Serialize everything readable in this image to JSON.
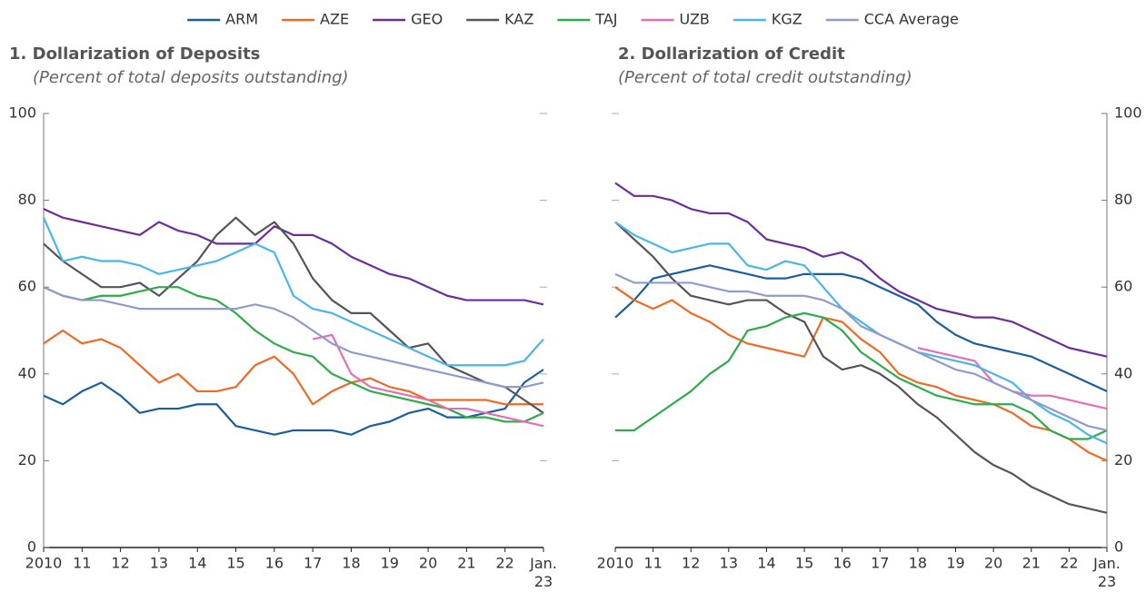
{
  "chart_data": [
    {
      "type": "line",
      "title": "1. Dollarization of Deposits",
      "subtitle": "(Percent of total deposits outstanding)",
      "yaxis_side": "left",
      "x": [
        2010,
        2010.5,
        2011,
        2011.5,
        2012,
        2012.5,
        2013,
        2013.5,
        2014,
        2014.5,
        2015,
        2015.5,
        2016,
        2016.5,
        2017,
        2017.5,
        2018,
        2018.5,
        2019,
        2019.5,
        2020,
        2020.5,
        2021,
        2021.5,
        2022,
        2022.5,
        2023
      ],
      "xlim": [
        2010,
        2023
      ],
      "xticks": [
        {
          "value": 2010,
          "label": "2010"
        },
        {
          "value": 2011,
          "label": "11"
        },
        {
          "value": 2012,
          "label": "12"
        },
        {
          "value": 2013,
          "label": "13"
        },
        {
          "value": 2014,
          "label": "14"
        },
        {
          "value": 2015,
          "label": "15"
        },
        {
          "value": 2016,
          "label": "16"
        },
        {
          "value": 2017,
          "label": "17"
        },
        {
          "value": 2018,
          "label": "18"
        },
        {
          "value": 2019,
          "label": "19"
        },
        {
          "value": 2020,
          "label": "20"
        },
        {
          "value": 2021,
          "label": "21"
        },
        {
          "value": 2022,
          "label": "22"
        },
        {
          "value": 2023,
          "label": "Jan. 23"
        }
      ],
      "ylim": [
        0,
        100
      ],
      "yticks": [
        0,
        20,
        40,
        60,
        80,
        100
      ],
      "series": [
        {
          "name": "ARM",
          "color": "#1b5e9e",
          "values": [
            35,
            33,
            36,
            38,
            35,
            31,
            32,
            32,
            33,
            33,
            28,
            27,
            26,
            27,
            27,
            27,
            26,
            28,
            29,
            31,
            32,
            30,
            30,
            31,
            32,
            38,
            41
          ]
        },
        {
          "name": "AZE",
          "color": "#ee6a24",
          "values": [
            47,
            50,
            47,
            48,
            46,
            42,
            38,
            40,
            36,
            36,
            37,
            42,
            44,
            40,
            33,
            36,
            38,
            39,
            37,
            36,
            34,
            34,
            34,
            34,
            33,
            33,
            33
          ]
        },
        {
          "name": "GEO",
          "color": "#6b2d9b",
          "values": [
            78,
            76,
            75,
            74,
            73,
            72,
            75,
            73,
            72,
            70,
            70,
            70,
            74,
            72,
            72,
            70,
            67,
            65,
            63,
            62,
            60,
            58,
            57,
            57,
            57,
            57,
            56
          ]
        },
        {
          "name": "KAZ",
          "color": "#555555",
          "values": [
            70,
            66,
            63,
            60,
            60,
            61,
            58,
            62,
            66,
            72,
            76,
            72,
            75,
            70,
            62,
            57,
            54,
            54,
            50,
            46,
            47,
            42,
            40,
            38,
            37,
            34,
            31
          ]
        },
        {
          "name": "TAJ",
          "color": "#2eab4a",
          "values": [
            60,
            58,
            57,
            58,
            58,
            59,
            60,
            60,
            58,
            57,
            54,
            50,
            47,
            45,
            44,
            40,
            38,
            36,
            35,
            34,
            33,
            32,
            30,
            30,
            29,
            29,
            31
          ]
        },
        {
          "name": "UZB",
          "color": "#e46fb4",
          "values": [
            null,
            null,
            null,
            null,
            null,
            null,
            null,
            null,
            null,
            null,
            null,
            null,
            null,
            null,
            48,
            49,
            40,
            37,
            36,
            35,
            34,
            32,
            32,
            31,
            30,
            29,
            28
          ]
        },
        {
          "name": "KGZ",
          "color": "#4ab5e8",
          "values": [
            76,
            66,
            67,
            66,
            66,
            65,
            63,
            64,
            65,
            66,
            68,
            70,
            68,
            58,
            55,
            54,
            52,
            50,
            48,
            46,
            44,
            42,
            42,
            42,
            42,
            43,
            48
          ]
        },
        {
          "name": "CCA Average",
          "color": "#8f9bcb",
          "values": [
            60,
            58,
            57,
            57,
            56,
            55,
            55,
            55,
            55,
            55,
            55,
            56,
            55,
            53,
            50,
            47,
            45,
            44,
            43,
            42,
            41,
            40,
            39,
            38,
            37,
            37,
            38
          ]
        }
      ]
    },
    {
      "type": "line",
      "title": "2. Dollarization of Credit",
      "subtitle": "(Percent of total credit outstanding)",
      "yaxis_side": "right",
      "x": [
        2010,
        2010.5,
        2011,
        2011.5,
        2012,
        2012.5,
        2013,
        2013.5,
        2014,
        2014.5,
        2015,
        2015.5,
        2016,
        2016.5,
        2017,
        2017.5,
        2018,
        2018.5,
        2019,
        2019.5,
        2020,
        2020.5,
        2021,
        2021.5,
        2022,
        2022.5,
        2023
      ],
      "xlim": [
        2010,
        2023
      ],
      "xticks": [
        {
          "value": 2010,
          "label": "2010"
        },
        {
          "value": 2011,
          "label": "11"
        },
        {
          "value": 2012,
          "label": "12"
        },
        {
          "value": 2013,
          "label": "13"
        },
        {
          "value": 2014,
          "label": "14"
        },
        {
          "value": 2015,
          "label": "15"
        },
        {
          "value": 2016,
          "label": "16"
        },
        {
          "value": 2017,
          "label": "17"
        },
        {
          "value": 2018,
          "label": "18"
        },
        {
          "value": 2019,
          "label": "19"
        },
        {
          "value": 2020,
          "label": "20"
        },
        {
          "value": 2021,
          "label": "21"
        },
        {
          "value": 2022,
          "label": "22"
        },
        {
          "value": 2023,
          "label": "Jan. 23"
        }
      ],
      "ylim": [
        0,
        100
      ],
      "yticks": [
        0,
        20,
        40,
        60,
        80,
        100
      ],
      "series": [
        {
          "name": "ARM",
          "color": "#1b5e9e",
          "values": [
            53,
            57,
            62,
            63,
            64,
            65,
            64,
            63,
            62,
            62,
            63,
            63,
            63,
            62,
            60,
            58,
            56,
            52,
            49,
            47,
            46,
            45,
            44,
            42,
            40,
            38,
            36
          ]
        },
        {
          "name": "AZE",
          "color": "#ee6a24",
          "values": [
            60,
            57,
            55,
            57,
            54,
            52,
            49,
            47,
            46,
            45,
            44,
            53,
            52,
            48,
            45,
            40,
            38,
            37,
            35,
            34,
            33,
            31,
            28,
            27,
            25,
            22,
            20
          ]
        },
        {
          "name": "GEO",
          "color": "#6b2d9b",
          "values": [
            84,
            81,
            81,
            80,
            78,
            77,
            77,
            75,
            71,
            70,
            69,
            67,
            68,
            66,
            62,
            59,
            57,
            55,
            54,
            53,
            53,
            52,
            50,
            48,
            46,
            45,
            44
          ]
        },
        {
          "name": "KAZ",
          "color": "#555555",
          "values": [
            75,
            71,
            67,
            62,
            58,
            57,
            56,
            57,
            57,
            54,
            52,
            44,
            41,
            42,
            40,
            37,
            33,
            30,
            26,
            22,
            19,
            17,
            14,
            12,
            10,
            9,
            8
          ]
        },
        {
          "name": "TAJ",
          "color": "#2eab4a",
          "values": [
            27,
            27,
            30,
            33,
            36,
            40,
            43,
            50,
            51,
            53,
            54,
            53,
            50,
            45,
            42,
            39,
            37,
            35,
            34,
            33,
            33,
            33,
            31,
            27,
            25,
            25,
            27
          ]
        },
        {
          "name": "UZB",
          "color": "#e46fb4",
          "values": [
            null,
            null,
            null,
            null,
            null,
            null,
            null,
            null,
            null,
            null,
            null,
            null,
            null,
            null,
            null,
            null,
            46,
            45,
            44,
            43,
            38,
            36,
            35,
            35,
            34,
            33,
            32
          ]
        },
        {
          "name": "KGZ",
          "color": "#4ab5e8",
          "values": [
            75,
            72,
            70,
            68,
            69,
            70,
            70,
            65,
            64,
            66,
            65,
            60,
            55,
            52,
            49,
            47,
            45,
            44,
            43,
            42,
            40,
            38,
            34,
            31,
            29,
            26,
            24
          ]
        },
        {
          "name": "CCA Average",
          "color": "#8f9bcb",
          "values": [
            63,
            61,
            61,
            61,
            61,
            60,
            59,
            59,
            58,
            58,
            58,
            57,
            55,
            51,
            49,
            47,
            45,
            43,
            41,
            40,
            38,
            36,
            34,
            32,
            30,
            28,
            27
          ]
        }
      ]
    }
  ]
}
